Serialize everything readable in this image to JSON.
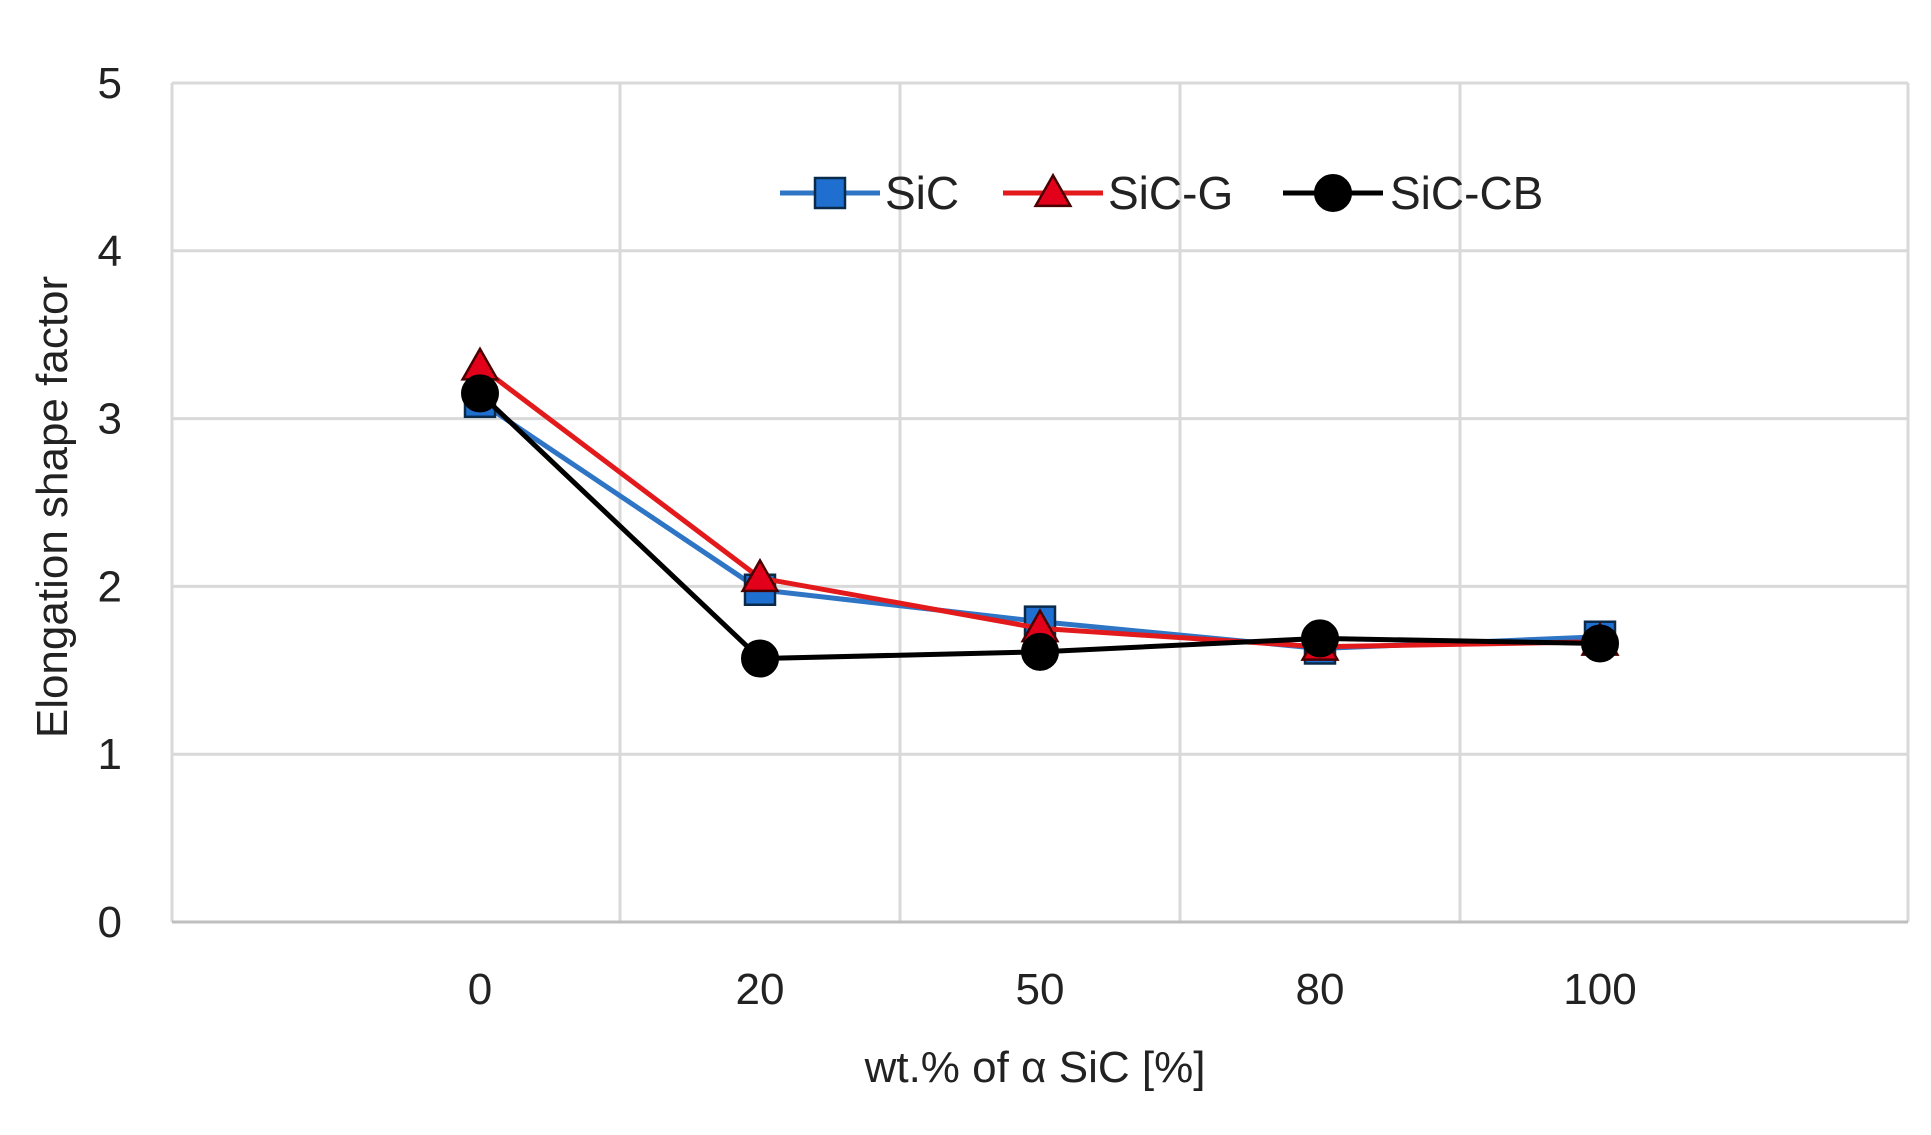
{
  "chart_data": {
    "type": "line",
    "title": "",
    "xlabel": "wt.% of α SiC [%]",
    "ylabel": "Elongation shape factor",
    "categories": [
      "0",
      "20",
      "50",
      "80",
      "100"
    ],
    "ylim": [
      0,
      5
    ],
    "yticks": [
      "0",
      "1",
      "2",
      "3",
      "4",
      "5"
    ],
    "grid": true,
    "legend_position": "top-center",
    "series": [
      {
        "name": "SiC",
        "values": [
          3.1,
          1.98,
          1.79,
          1.63,
          1.7
        ],
        "color": "#2e75c6",
        "marker_fill": "#1f6fd0",
        "marker": "square"
      },
      {
        "name": "SiC-G",
        "values": [
          3.31,
          2.05,
          1.75,
          1.64,
          1.67
        ],
        "color": "#e31a1c",
        "marker_fill": "#e3001b",
        "marker": "triangle"
      },
      {
        "name": "SiC-CB",
        "values": [
          3.15,
          1.57,
          1.61,
          1.69,
          1.66
        ],
        "color": "#000000",
        "marker_fill": "#000000",
        "marker": "circle"
      }
    ]
  }
}
